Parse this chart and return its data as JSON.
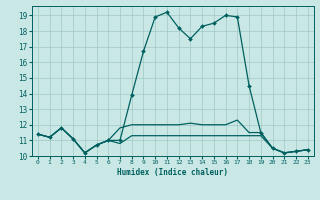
{
  "xlabel": "Humidex (Indice chaleur)",
  "background_color": "#c9e8e5",
  "grid_color": "#a0c8c5",
  "line_color": "#006060",
  "xlim": [
    -0.5,
    23.5
  ],
  "ylim": [
    10.0,
    19.6
  ],
  "yticks": [
    10,
    11,
    12,
    13,
    14,
    15,
    16,
    17,
    18,
    19
  ],
  "xticks": [
    0,
    1,
    2,
    3,
    4,
    5,
    6,
    7,
    8,
    9,
    10,
    11,
    12,
    13,
    14,
    15,
    16,
    17,
    18,
    19,
    20,
    21,
    22,
    23
  ],
  "series": [
    [
      11.4,
      11.2,
      11.8,
      11.1,
      10.2,
      10.7,
      11.0,
      11.0,
      13.9,
      16.7,
      18.9,
      19.2,
      18.2,
      17.5,
      18.3,
      18.5,
      19.0,
      18.9,
      14.5,
      11.5,
      10.5,
      10.2,
      10.3,
      10.4
    ],
    [
      11.4,
      11.2,
      11.8,
      11.1,
      10.2,
      10.7,
      11.0,
      11.8,
      12.0,
      12.0,
      12.0,
      12.0,
      12.0,
      12.1,
      12.0,
      12.0,
      12.0,
      12.3,
      11.5,
      11.5,
      10.5,
      10.2,
      10.3,
      10.4
    ],
    [
      11.4,
      11.2,
      11.8,
      11.1,
      10.2,
      10.7,
      11.0,
      10.8,
      11.3,
      11.3,
      11.3,
      11.3,
      11.3,
      11.3,
      11.3,
      11.3,
      11.3,
      11.3,
      11.3,
      11.3,
      10.5,
      10.2,
      10.3,
      10.4
    ]
  ],
  "marker_indices": [
    0,
    1,
    2,
    3,
    4,
    5,
    6,
    7,
    8,
    9,
    10,
    11,
    12,
    13,
    14,
    15,
    16,
    17,
    18,
    19,
    20,
    21,
    22,
    23
  ],
  "figsize": [
    3.2,
    2.0
  ],
  "dpi": 100
}
